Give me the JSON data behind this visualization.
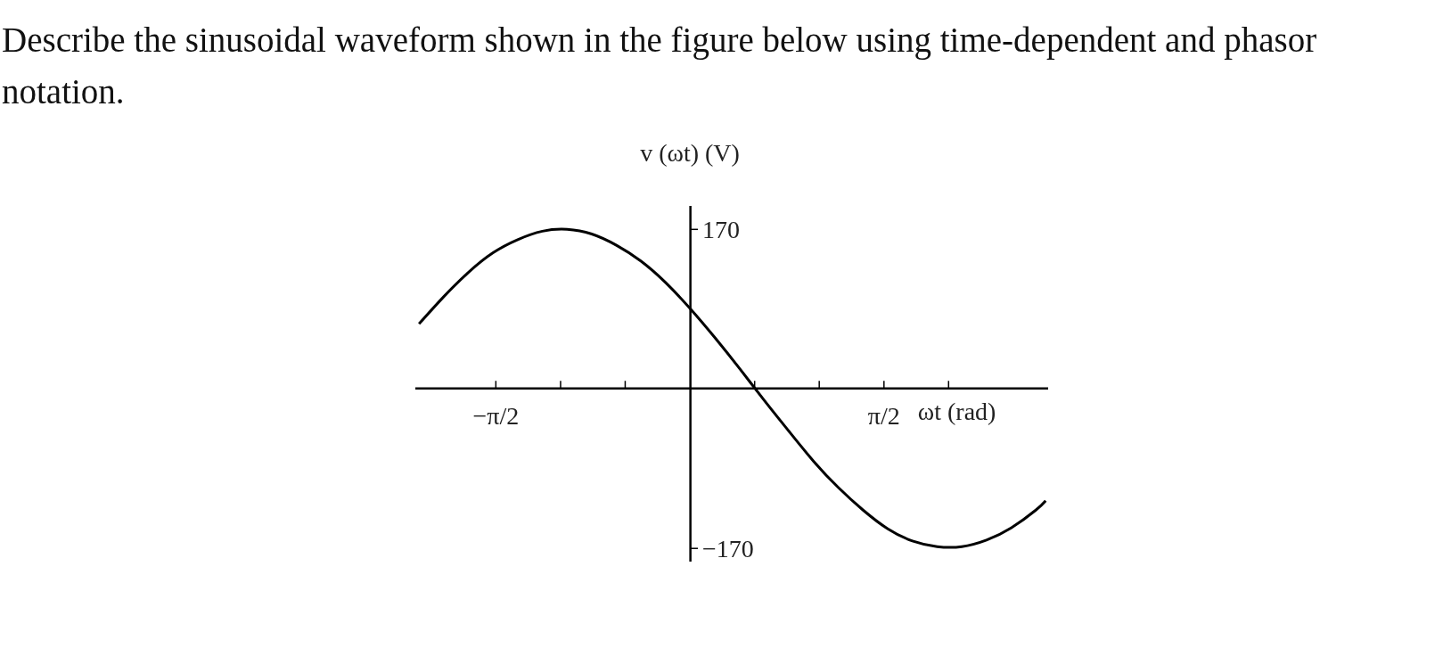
{
  "chart_data": {
    "type": "line",
    "title": "Describe the sinusoidal waveform shown in the figure below using time-dependent and phasor notation.",
    "xlabel": "ωt (rad)",
    "ylabel": "v (ωt) (V)",
    "x": [
      -2.2,
      -2.0,
      -1.8,
      -1.6,
      -1.4,
      -1.2,
      -1.0,
      -0.8,
      -0.6,
      -0.4,
      -0.2,
      0,
      0.2,
      0.4,
      0.6,
      0.8,
      1.0,
      1.2,
      1.4,
      1.6,
      1.8,
      2.0,
      2.2,
      2.4,
      2.6,
      2.8,
      2.88
    ],
    "series": [
      {
        "color": "#000000",
        "values": [
          69,
          98,
          124,
          145,
          159,
          168,
          170,
          165,
          153,
          136,
          113,
          85,
          54,
          21,
          -13,
          -46,
          -78,
          -106,
          -130,
          -150,
          -163,
          -169,
          -169,
          -162,
          -149,
          -130,
          -120
        ]
      }
    ],
    "xlim": [
      -2.23,
      2.9
    ],
    "ylim": [
      -185,
      195
    ],
    "xticks": [
      {
        "value": -1.571,
        "label": "−π/2"
      },
      {
        "value": -1.047,
        "label": null
      },
      {
        "value": -0.524,
        "label": null
      },
      {
        "value": 0.524,
        "label": null
      },
      {
        "value": 1.047,
        "label": null
      },
      {
        "value": 1.571,
        "label": "π/2"
      },
      {
        "value": 2.094,
        "label": null
      }
    ],
    "yticks": [
      170,
      {
        "value": -170,
        "label": "−170"
      }
    ],
    "marker": "none",
    "line_style": "solid"
  }
}
